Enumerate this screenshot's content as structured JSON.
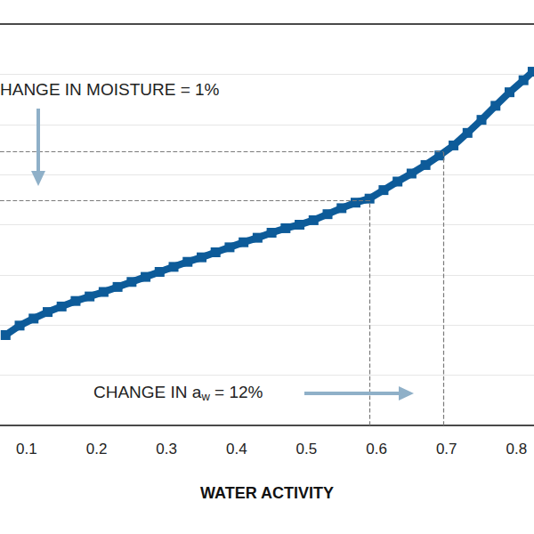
{
  "chart_data": {
    "type": "line",
    "xlabel": "WATER ACTIVITY",
    "x": [
      0.07,
      0.09,
      0.11,
      0.13,
      0.15,
      0.17,
      0.19,
      0.21,
      0.23,
      0.25,
      0.27,
      0.29,
      0.31,
      0.33,
      0.35,
      0.37,
      0.39,
      0.41,
      0.43,
      0.45,
      0.47,
      0.49,
      0.51,
      0.53,
      0.55,
      0.57,
      0.59,
      0.61,
      0.63,
      0.65,
      0.67,
      0.69,
      0.71,
      0.73,
      0.75,
      0.77,
      0.79,
      0.81,
      0.823
    ],
    "values": [
      1.8,
      1.99,
      2.13,
      2.26,
      2.37,
      2.48,
      2.57,
      2.66,
      2.76,
      2.86,
      2.96,
      3.06,
      3.16,
      3.26,
      3.35,
      3.45,
      3.55,
      3.65,
      3.74,
      3.84,
      3.93,
      4.0,
      4.09,
      4.21,
      4.33,
      4.44,
      4.52,
      4.69,
      4.86,
      5.02,
      5.19,
      5.38,
      5.58,
      5.83,
      6.09,
      6.37,
      6.64,
      6.88,
      7.05
    ],
    "color": "#0d5b99",
    "marker": "square",
    "line_style": "solid",
    "xlim": [
      0.062,
      0.825
    ],
    "xticks": [
      0.1,
      0.2,
      0.3,
      0.4,
      0.5,
      0.6,
      0.7,
      0.8
    ],
    "ylim": [
      0,
      8
    ],
    "yticks": [
      0,
      1,
      2,
      3,
      4,
      5,
      6,
      7,
      8
    ],
    "grid": true,
    "tick_labels": "x",
    "annotations": [
      {
        "text": "HANGE IN MOISTURE = 1%"
      },
      {
        "text": "CHANGE IN aw = 12%"
      }
    ],
    "reference_points": [
      {
        "x": 0.59,
        "y": 4.49
      },
      {
        "x": 0.695,
        "y": 5.46
      }
    ]
  }
}
